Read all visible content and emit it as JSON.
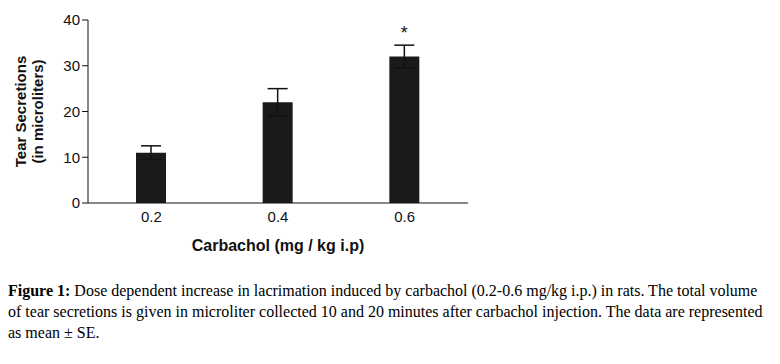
{
  "chart_data": {
    "type": "bar",
    "categories": [
      "0.2",
      "0.4",
      "0.6"
    ],
    "values": [
      11,
      22,
      32
    ],
    "errors": [
      1.5,
      3,
      2.5
    ],
    "color": "#1a1a1a",
    "ylim": [
      0,
      40
    ],
    "yticks": [
      0,
      10,
      20,
      30,
      40
    ],
    "grid": false,
    "x_label": "Carbachol (mg / kg i.p)",
    "y_label": [
      "Tear Secretions",
      "(in microliters)"
    ],
    "annotations": [
      {
        "text": "*",
        "category": "0.6"
      }
    ],
    "caption_label": "Figure 1:",
    "caption": "Dose dependent increase in lacrimation induced by carbachol (0.2-0.6 mg/kg i.p.) in rats. The total volume of tear secretions is given in microliter collected 10 and 20 minutes after carbachol injection. The data are represented as mean ± SE."
  }
}
